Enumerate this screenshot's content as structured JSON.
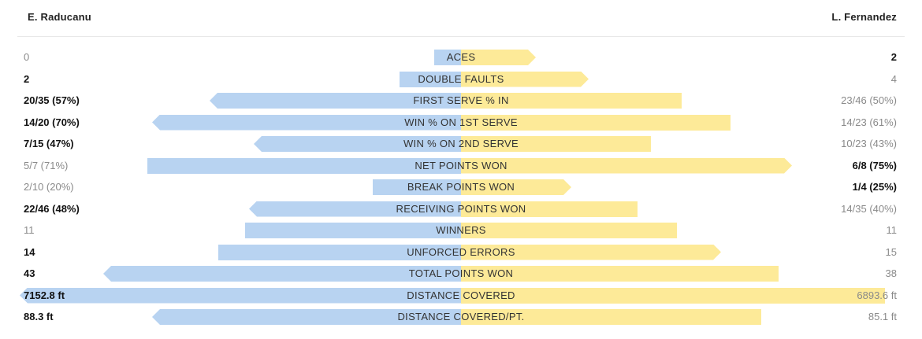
{
  "players": {
    "left": "E. Raducanu",
    "right": "L. Fernandez"
  },
  "colors": {
    "left_bar": "#b8d3f1",
    "right_bar": "#fdea98"
  },
  "stats": [
    {
      "label": "ACES",
      "left": "0",
      "right": "2",
      "left_frac": 0.06,
      "right_frac": 0.17,
      "bold": "right"
    },
    {
      "label": "DOUBLE FAULTS",
      "left": "2",
      "right": "4",
      "left_frac": 0.14,
      "right_frac": 0.29,
      "bold": "left"
    },
    {
      "label": "FIRST SERVE % IN",
      "left": "20/35 (57%)",
      "right": "23/46 (50%)",
      "left_frac": 0.57,
      "right_frac": 0.5,
      "bold": "left"
    },
    {
      "label": "WIN % ON 1ST SERVE",
      "left": "14/20 (70%)",
      "right": "14/23 (61%)",
      "left_frac": 0.7,
      "right_frac": 0.61,
      "bold": "left"
    },
    {
      "label": "WIN % ON 2ND SERVE",
      "left": "7/15 (47%)",
      "right": "10/23 (43%)",
      "left_frac": 0.47,
      "right_frac": 0.43,
      "bold": "left"
    },
    {
      "label": "NET POINTS WON",
      "left": "5/7 (71%)",
      "right": "6/8 (75%)",
      "left_frac": 0.71,
      "right_frac": 0.75,
      "bold": "right"
    },
    {
      "label": "BREAK POINTS WON",
      "left": "2/10 (20%)",
      "right": "1/4 (25%)",
      "left_frac": 0.2,
      "right_frac": 0.25,
      "bold": "right"
    },
    {
      "label": "RECEIVING POINTS WON",
      "left": "22/46 (48%)",
      "right": "14/35 (40%)",
      "left_frac": 0.48,
      "right_frac": 0.4,
      "bold": "left"
    },
    {
      "label": "WINNERS",
      "left": "11",
      "right": "11",
      "left_frac": 0.49,
      "right_frac": 0.49,
      "bold": "none"
    },
    {
      "label": "UNFORCED ERRORS",
      "left": "14",
      "right": "15",
      "left_frac": 0.55,
      "right_frac": 0.59,
      "bold": "left"
    },
    {
      "label": "TOTAL POINTS WON",
      "left": "43",
      "right": "38",
      "left_frac": 0.81,
      "right_frac": 0.72,
      "bold": "left"
    },
    {
      "label": "DISTANCE COVERED",
      "left": "7152.8 ft",
      "right": "6893.6 ft",
      "left_frac": 1.0,
      "right_frac": 0.96,
      "bold": "left"
    },
    {
      "label": "DISTANCE COVERED/PT.",
      "left": "88.3 ft",
      "right": "85.1 ft",
      "left_frac": 0.7,
      "right_frac": 0.68,
      "bold": "left"
    }
  ]
}
